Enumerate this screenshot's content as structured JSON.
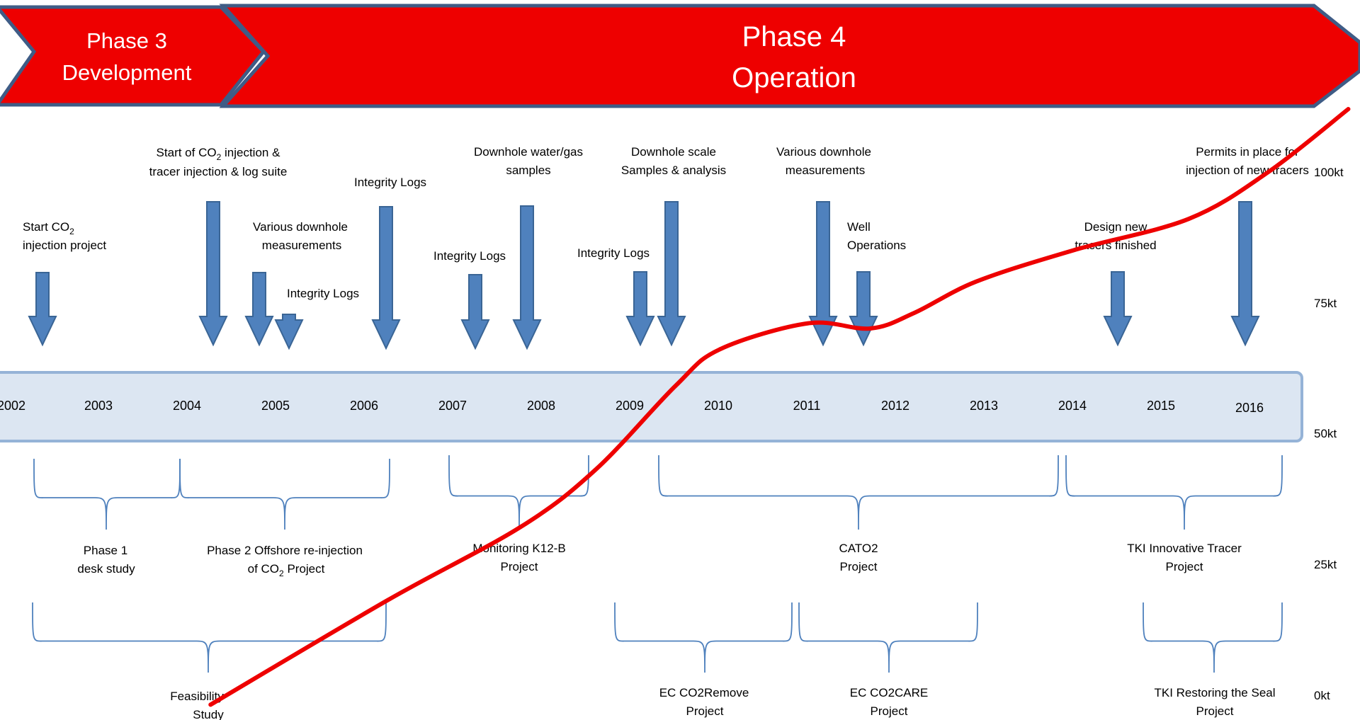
{
  "colors": {
    "phase_fill": "#ee0000",
    "phase_outer": "#3f5c86",
    "arrow_fill": "#4f81bd",
    "arrow_stroke": "#3a6595",
    "timeline_fill": "#dce6f2",
    "timeline_stroke": "#95b3d7",
    "brace": "#4f81bd",
    "curve": "#ee0000"
  },
  "phases": [
    {
      "line1": "Phase 3",
      "line2": "Development"
    },
    {
      "line1": "Phase 4",
      "line2": "Operation"
    }
  ],
  "years": [
    "2002",
    "2003",
    "2004",
    "2005",
    "2006",
    "2007",
    "2008",
    "2009",
    "2010",
    "2011",
    "2012",
    "2013",
    "2014",
    "2015",
    "2016"
  ],
  "events": [
    {
      "label": "Start CO",
      "sub": "2",
      "tail": "",
      "line2": "injection project"
    },
    {
      "label": "Start of CO",
      "sub": "2",
      "tail": " injection &",
      "line2": "tracer injection & log suite"
    },
    {
      "label": "Various downhole",
      "line2": "measurements"
    },
    {
      "label": "Integrity Logs"
    },
    {
      "label": "Integrity Logs"
    },
    {
      "label": "Integrity Logs"
    },
    {
      "label": "Downhole water/gas",
      "line2": "samples"
    },
    {
      "label": "Integrity Logs"
    },
    {
      "label": "Downhole scale",
      "line2": "Samples & analysis"
    },
    {
      "label": "Various downhole",
      "line2": "measurements"
    },
    {
      "label": "Well",
      "line2": "Operations"
    },
    {
      "label": "Design new",
      "line2": "tracers finished"
    },
    {
      "label": "Permits in place for",
      "line2": "injection of new tracers"
    }
  ],
  "projects_row1": [
    {
      "line1": "Phase 1",
      "line2": "desk study"
    },
    {
      "line1": "Phase 2 Offshore re-injection",
      "line2a": "of  CO",
      "sub": "2",
      "line2b": " Project"
    },
    {
      "line1": "Monitoring K12-B",
      "line2": "Project"
    },
    {
      "line1": "CATO2",
      "line2": "Project"
    },
    {
      "line1": "TKI Innovative Tracer",
      "line2": "Project"
    }
  ],
  "projects_row2": [
    {
      "line1": "Feasibility",
      "line2": "Study"
    },
    {
      "line1": "EC CO2Remove",
      "line2": "Project"
    },
    {
      "line1": "EC CO2CARE",
      "line2": "Project"
    },
    {
      "line1": "TKI Restoring the Seal",
      "line2": "Project"
    }
  ],
  "chart_data": {
    "type": "line",
    "y_ticks": [
      "100kt",
      "75kt",
      "50kt",
      "25kt",
      "0kt"
    ],
    "ylim": [
      0,
      100
    ],
    "series": [
      {
        "x": [
          2004.25,
          2006.25,
          2007.75,
          2008.6,
          2009.5,
          2010.0,
          2011.0,
          2011.7,
          2012.2,
          2012.9,
          2014.0,
          2015.3,
          2016.2,
          2017.1
        ],
        "values": [
          -1,
          19,
          33,
          44,
          60,
          67,
          72,
          71,
          74,
          80,
          86,
          92,
          101,
          113
        ]
      }
    ]
  }
}
